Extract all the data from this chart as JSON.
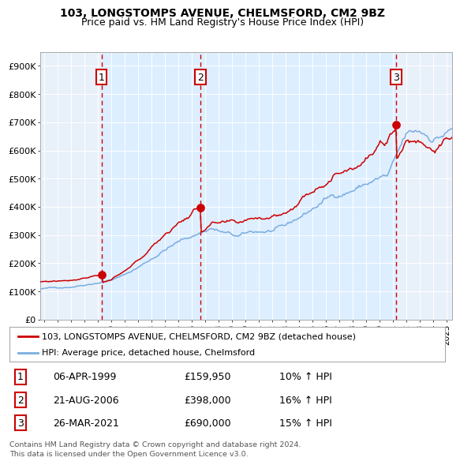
{
  "title": "103, LONGSTOMPS AVENUE, CHELMSFORD, CM2 9BZ",
  "subtitle": "Price paid vs. HM Land Registry's House Price Index (HPI)",
  "ylim": [
    0,
    950000
  ],
  "yticks": [
    0,
    100000,
    200000,
    300000,
    400000,
    500000,
    600000,
    700000,
    800000,
    900000
  ],
  "ytick_labels": [
    "£0",
    "£100K",
    "£200K",
    "£300K",
    "£400K",
    "£500K",
    "£600K",
    "£700K",
    "£800K",
    "£900K"
  ],
  "xlim_start": 1994.7,
  "xlim_end": 2025.4,
  "xticks": [
    1995,
    1996,
    1997,
    1998,
    1999,
    2000,
    2001,
    2002,
    2003,
    2004,
    2005,
    2006,
    2007,
    2008,
    2009,
    2010,
    2011,
    2012,
    2013,
    2014,
    2015,
    2016,
    2017,
    2018,
    2019,
    2020,
    2021,
    2022,
    2023,
    2024,
    2025
  ],
  "transaction1_date": 1999.27,
  "transaction1_price": 159950,
  "transaction2_date": 2006.64,
  "transaction2_price": 398000,
  "transaction3_date": 2021.23,
  "transaction3_price": 690000,
  "red_line_color": "#cc0000",
  "blue_line_color": "#7aade0",
  "shaded_color": "#ddeeff",
  "dashed_color": "#cc0000",
  "marker_color": "#cc0000",
  "legend_label1": "103, LONGSTOMPS AVENUE, CHELMSFORD, CM2 9BZ (detached house)",
  "legend_label2": "HPI: Average price, detached house, Chelmsford",
  "table_rows": [
    {
      "num": "1",
      "date": "06-APR-1999",
      "price": "£159,950",
      "change": "10% ↑ HPI"
    },
    {
      "num": "2",
      "date": "21-AUG-2006",
      "price": "£398,000",
      "change": "16% ↑ HPI"
    },
    {
      "num": "3",
      "date": "26-MAR-2021",
      "price": "£690,000",
      "change": "15% ↑ HPI"
    }
  ],
  "footnote1": "Contains HM Land Registry data © Crown copyright and database right 2024.",
  "footnote2": "This data is licensed under the Open Government Licence v3.0.",
  "background_color": "#ffffff",
  "plot_bg_color": "#e8f0fa"
}
